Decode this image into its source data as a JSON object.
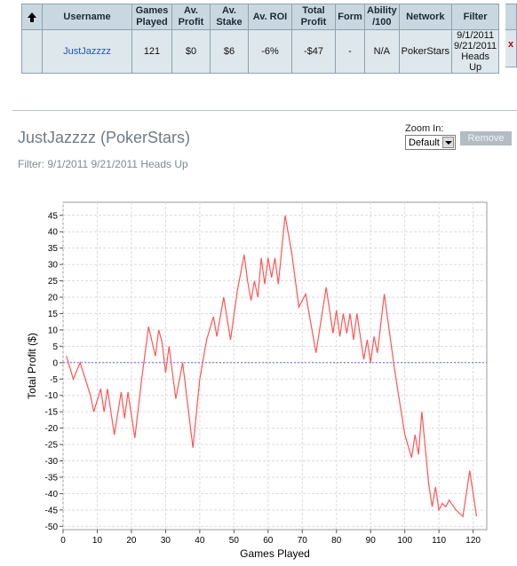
{
  "table": {
    "headers": [
      "",
      "Username",
      "Games Played",
      "Av. Profit",
      "Av. Stake",
      "Av. ROI",
      "Total Profit",
      "Form",
      "Ability /100",
      "Network",
      "Filter"
    ],
    "row": {
      "username": "JustJazzzz",
      "games_played": "121",
      "av_profit": "$0",
      "av_stake": "$6",
      "av_roi": "-6%",
      "total_profit": "-$47",
      "form": "-",
      "ability": "N/A",
      "network": "PokerStars",
      "filter_line1": "9/1/2011",
      "filter_line2": "9/21/2011",
      "filter_line3": "Heads Up",
      "remove_mark": "x"
    }
  },
  "section": {
    "title": "JustJazzzz (PokerStars)",
    "filter_text": "Filter: 9/1/2011 9/21/2011 Heads Up",
    "zoom_label": "Zoom In:",
    "zoom_value": "Default",
    "remove_label": "Remove"
  },
  "chart_data": {
    "type": "line",
    "xlabel": "Games Played",
    "ylabel": "Total Profit ($)",
    "xlim": [
      0,
      124
    ],
    "ylim": [
      -51,
      49
    ],
    "xticks": [
      0,
      10,
      20,
      30,
      40,
      50,
      60,
      70,
      80,
      90,
      100,
      110,
      120
    ],
    "yticks": [
      45,
      40,
      35,
      30,
      25,
      20,
      15,
      10,
      5,
      0,
      -5,
      -10,
      -15,
      -20,
      -25,
      -30,
      -35,
      -40,
      -45,
      -50
    ],
    "grid": true,
    "zero_line": true,
    "colors": {
      "series": "#ff5555",
      "zero": "#6a6ad8",
      "grid": "#dcdcdc"
    },
    "series": [
      {
        "x": [
          1,
          3,
          5,
          8,
          9,
          11,
          12,
          13,
          15,
          17,
          18,
          19,
          21,
          23,
          25,
          27,
          28,
          29,
          30,
          31,
          33,
          35,
          38,
          40,
          42,
          44,
          45,
          47,
          49,
          51,
          53,
          54,
          55,
          56,
          57,
          58,
          59,
          60,
          61,
          62,
          63,
          65,
          67,
          69,
          71,
          72,
          74,
          77,
          79,
          80,
          81,
          82,
          83,
          84,
          85,
          86,
          88,
          89,
          90,
          91,
          92,
          94,
          97,
          100,
          102,
          103,
          104,
          105,
          107,
          108,
          109,
          110,
          111,
          112,
          113,
          115,
          117,
          119,
          121
        ],
        "y": [
          2,
          -5,
          0,
          -10,
          -15,
          -8,
          -15,
          -8,
          -22,
          -9,
          -17,
          -9,
          -23,
          -5,
          11,
          2,
          10,
          6,
          -3,
          5,
          -11,
          0,
          -26,
          -5,
          7,
          14,
          8,
          20,
          7,
          22,
          33,
          25,
          19,
          25,
          20,
          32,
          24,
          32,
          26,
          32,
          24,
          45,
          33,
          17,
          21,
          15,
          3,
          23,
          9,
          16,
          8,
          15,
          9,
          15,
          7,
          15,
          1,
          7,
          0,
          8,
          3,
          21,
          -2,
          -22,
          -29,
          -22,
          -28,
          -15,
          -37,
          -44,
          -38,
          -45,
          -43,
          -44,
          -42,
          -45,
          -47,
          -33,
          -47
        ]
      }
    ]
  }
}
